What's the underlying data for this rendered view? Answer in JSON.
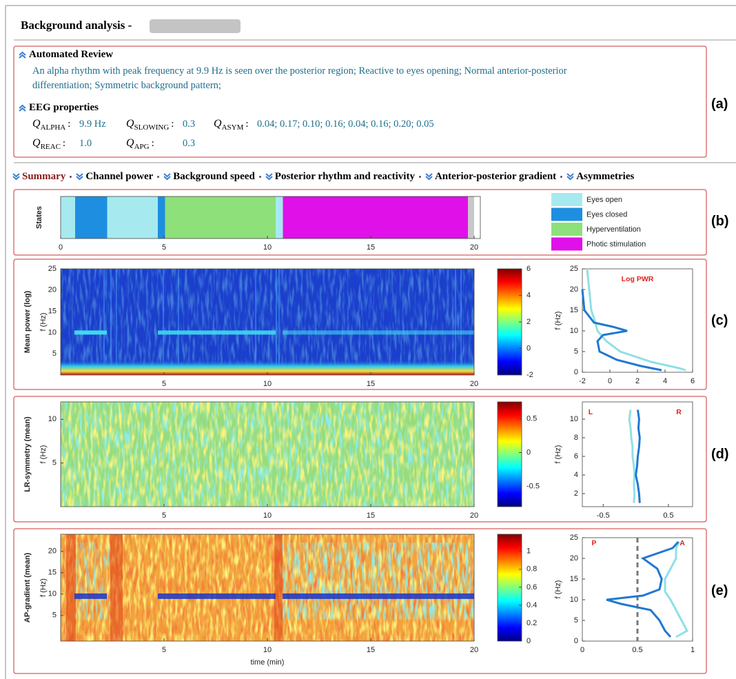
{
  "header": {
    "title": "Background analysis -"
  },
  "automated_review": {
    "heading": "Automated Review",
    "text": "An alpha rhythm with peak frequency at 9.9 Hz is seen over the posterior region; Reactive to eyes opening; Normal anterior-posterior differentiation; Symmetric background pattern;"
  },
  "eeg_properties": {
    "heading": "EEG properties",
    "separator": ":",
    "items": [
      {
        "symbol": "Q",
        "subscript": "ALPHA",
        "value": "9.9 Hz"
      },
      {
        "symbol": "Q",
        "subscript": "SLOWING",
        "value": "0.3"
      },
      {
        "symbol": "Q",
        "subscript": "ASYM",
        "value": "0.04; 0.17; 0.10; 0.16; 0.04; 0.16; 0.20; 0.05"
      },
      {
        "symbol": "Q",
        "subscript": "REAC",
        "value": "1.0"
      },
      {
        "symbol": "Q",
        "subscript": "APG",
        "value": "0.3"
      }
    ]
  },
  "tabs": [
    "Summary",
    "Channel power",
    "Background speed",
    "Posterior rhythm and reactivity",
    "Anterior-posterior gradient",
    "Asymmetries"
  ],
  "panel_labels": [
    "(a)",
    "(b)",
    "(c)",
    "(d)",
    "(e)"
  ],
  "chart_data": [
    {
      "type": "timeline",
      "ylabel": "States",
      "xlim": [
        0,
        20.3
      ],
      "xticks": [
        0,
        5,
        10,
        15,
        20
      ],
      "series": [
        {
          "name": "Eyes open",
          "color": "#a6eaf0",
          "intervals": [
            [
              0,
              0.7
            ],
            [
              2.25,
              4.7
            ],
            [
              10.4,
              10.75
            ]
          ]
        },
        {
          "name": "Eyes closed",
          "color": "#1e8fe0",
          "intervals": [
            [
              0.7,
              2.25
            ],
            [
              4.7,
              5.05
            ]
          ]
        },
        {
          "name": "Hyperventilation",
          "color": "#8ee07a",
          "intervals": [
            [
              5.05,
              10.4
            ]
          ]
        },
        {
          "name": "Photic stimulation",
          "color": "#e010e8",
          "intervals": [
            [
              10.75,
              19.7
            ]
          ]
        }
      ]
    },
    {
      "type": "heatmap",
      "ylabel": "Mean power (log)",
      "flabel": "f (Hz)",
      "xlim": [
        0,
        20
      ],
      "xticks": [
        5,
        10,
        15,
        20
      ],
      "ylim": [
        0,
        25
      ],
      "yticks": [
        5,
        10,
        15,
        20,
        25
      ],
      "clim": [
        -2,
        6
      ],
      "cticks": [
        -2,
        0,
        2,
        4,
        6
      ]
    },
    {
      "type": "line",
      "annotations": [
        "Log PWR"
      ],
      "ylabel": "f (Hz)",
      "xlim": [
        -2,
        6
      ],
      "xticks": [
        -2,
        0,
        2,
        4,
        6
      ],
      "ylim": [
        0,
        25
      ],
      "yticks": [
        0,
        5,
        10,
        15,
        20,
        25
      ],
      "series": [
        {
          "color": "#8fe0e6",
          "x": [
            5.5,
            5.0,
            3.0,
            0.75,
            -0.25,
            -0.9,
            -1.1,
            -1.35,
            -1.5,
            -1.65
          ],
          "y": [
            0.5,
            1,
            2.5,
            5,
            7.5,
            10,
            12.5,
            15,
            20,
            25
          ]
        },
        {
          "color": "#1f78d1",
          "x": [
            3.75,
            2.25,
            0.5,
            -0.75,
            -0.9,
            -0.5,
            1.25,
            0.2,
            -1.15,
            -1.85,
            -2
          ],
          "y": [
            0.5,
            1.5,
            3,
            5,
            7.5,
            9,
            10,
            11,
            12,
            15,
            20
          ]
        }
      ]
    },
    {
      "type": "heatmap",
      "ylabel": "LR-symmetry (mean)",
      "flabel": "f (Hz)",
      "xlim": [
        0,
        20
      ],
      "xticks": [
        5,
        10,
        15,
        20
      ],
      "ylim": [
        0,
        12
      ],
      "yticks": [
        5,
        10
      ],
      "clim": [
        -0.8,
        0.75
      ],
      "cticks": [
        -0.5,
        0,
        0.5
      ]
    },
    {
      "type": "line",
      "annotations": [
        "L",
        "R"
      ],
      "ylabel": "f (Hz)",
      "xlim": [
        -0.82,
        0.87
      ],
      "xticks": [
        -0.5,
        0.5
      ],
      "ylim": [
        0.6,
        11.85
      ],
      "yticks": [
        2,
        4,
        6,
        8,
        10
      ],
      "series": [
        {
          "color": "#8fe0e6",
          "x": [
            -0.03,
            -0.02,
            -0.03,
            -0.02,
            -0.03,
            -0.05,
            -0.05,
            -0.07,
            -0.08,
            -0.1,
            -0.08
          ],
          "y": [
            1,
            2,
            3,
            4,
            5,
            6,
            7,
            8,
            9,
            10,
            11
          ]
        },
        {
          "color": "#1f78d1",
          "x": [
            0.06,
            0.05,
            0.03,
            0.0,
            0.02,
            0.03,
            0.05,
            0.06,
            0.04,
            0.05,
            0.03
          ],
          "y": [
            1,
            2,
            3,
            4,
            5,
            6,
            7,
            8,
            9,
            10,
            11
          ]
        }
      ]
    },
    {
      "type": "heatmap",
      "ylabel": "AP-gradient (mean)",
      "flabel": "f (Hz)",
      "xlabel": "time (min)",
      "xlim": [
        0,
        20
      ],
      "xticks": [
        5,
        10,
        15,
        20
      ],
      "ylim": [
        -1,
        24
      ],
      "yticks": [
        5,
        10,
        15,
        20
      ],
      "clim": [
        0,
        1.19
      ],
      "cticks": [
        0,
        0.2,
        0.4,
        0.6,
        0.8,
        1
      ]
    },
    {
      "type": "line",
      "annotations": [
        "P",
        "A"
      ],
      "ylabel": "f (Hz)",
      "xlim": [
        0,
        1
      ],
      "xticks": [
        0,
        0.5,
        1
      ],
      "ylim": [
        0,
        25
      ],
      "yticks": [
        0,
        5,
        10,
        15,
        20,
        25
      ],
      "refline": 0.5,
      "series": [
        {
          "color": "#8fe0e6",
          "x": [
            0.85,
            0.95,
            0.9,
            0.85,
            0.8,
            0.75,
            0.75,
            0.8,
            0.85,
            0.85,
            0.88
          ],
          "y": [
            1,
            2.5,
            5,
            7.5,
            10,
            12,
            15,
            17.5,
            20,
            22.5,
            24
          ]
        },
        {
          "color": "#1f78d1",
          "x": [
            0.8,
            0.75,
            0.7,
            0.62,
            0.35,
            0.22,
            0.55,
            0.7,
            0.72,
            0.68,
            0.55,
            0.82,
            0.87
          ],
          "y": [
            1,
            2.5,
            5,
            7.5,
            9,
            10,
            11,
            12.5,
            15,
            17.5,
            20,
            22.5,
            24
          ]
        }
      ]
    }
  ]
}
